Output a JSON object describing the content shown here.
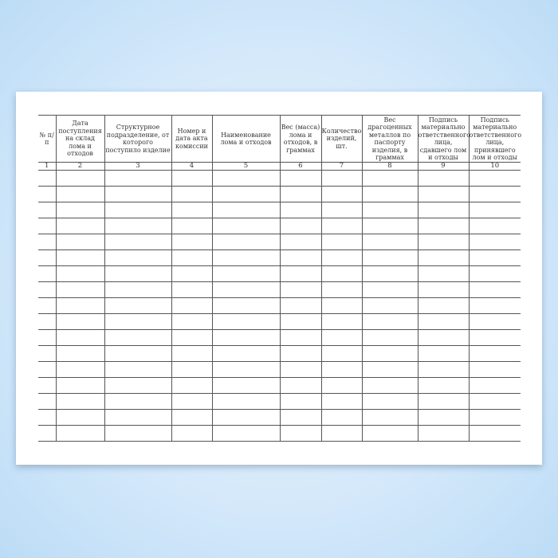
{
  "form": {
    "columns": [
      {
        "header": "№ п/п",
        "number": "1"
      },
      {
        "header": "Дата поступления на склад лома и отходов",
        "number": "2"
      },
      {
        "header": "Структурное подразделение, от которого поступило изделие",
        "number": "3"
      },
      {
        "header": "Номер и дата акта комиссии",
        "number": "4"
      },
      {
        "header": "Наименование лома и отходов",
        "number": "5"
      },
      {
        "header": "Вес (масса) лома и отходов, в граммах",
        "number": "6"
      },
      {
        "header": "Количество изделий, шт.",
        "number": "7"
      },
      {
        "header": "Вес драгоценных металлов по паспорту изделия, в граммах",
        "number": "8"
      },
      {
        "header": "Подпись материально ответственного лица, сдавшего лом и отходы",
        "number": "9"
      },
      {
        "header": "Подпись материально ответственного лица, принявшего лом и отходы",
        "number": "10"
      }
    ],
    "empty_rows": 17
  }
}
